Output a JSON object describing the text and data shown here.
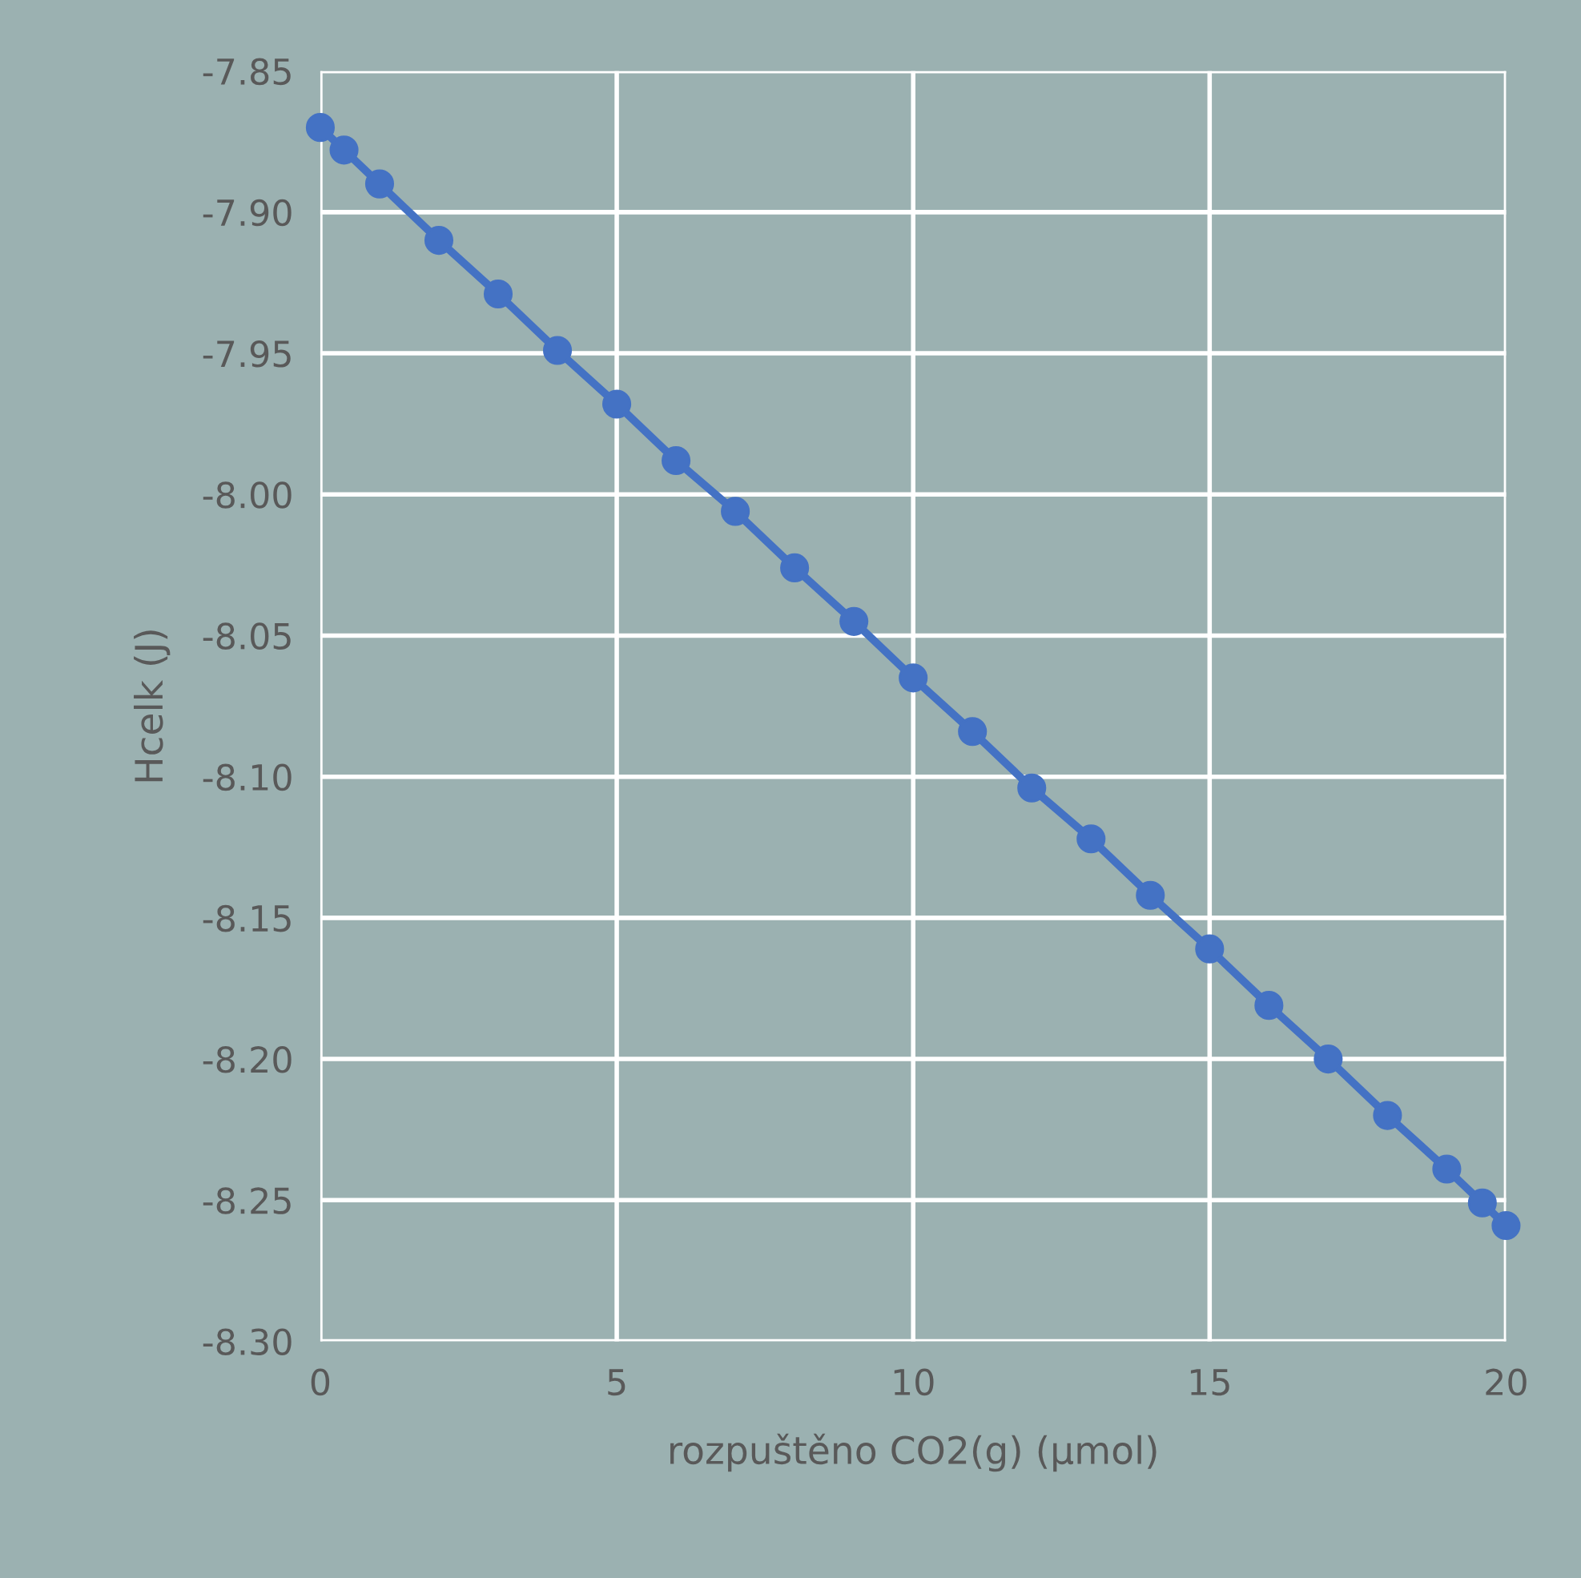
{
  "chart_data": {
    "type": "line",
    "xlabel": "rozpuštěno CO2(g) (µmol)",
    "ylabel": "Hcelk (J)",
    "x": [
      0,
      0.4,
      1,
      2,
      3,
      4,
      5,
      6,
      7,
      8,
      9,
      10,
      11,
      12,
      13,
      14,
      15,
      16,
      17,
      18,
      19,
      19.6,
      20
    ],
    "series": [
      {
        "color": "#4472c4",
        "values": [
          -7.87,
          -7.878,
          -7.89,
          -7.91,
          -7.929,
          -7.949,
          -7.968,
          -7.988,
          -8.006,
          -8.026,
          -8.045,
          -8.065,
          -8.084,
          -8.104,
          -8.122,
          -8.142,
          -8.161,
          -8.181,
          -8.2,
          -8.22,
          -8.239,
          -8.251,
          -8.259
        ]
      }
    ],
    "xlim": [
      0,
      20
    ],
    "xticks": [
      0,
      5,
      10,
      15,
      20
    ],
    "ylim": [
      -8.3,
      -7.85
    ],
    "yticks": [
      {
        "value": -8.3,
        "label": "-8.30"
      },
      {
        "value": -8.25,
        "label": "-8.25"
      },
      {
        "value": -8.2,
        "label": "-8.20"
      },
      {
        "value": -8.15,
        "label": "-8.15"
      },
      {
        "value": -8.1,
        "label": "-8.10"
      },
      {
        "value": -8.05,
        "label": "-8.05"
      },
      {
        "value": -8.0,
        "label": "-8.00"
      },
      {
        "value": -7.95,
        "label": "-7.95"
      },
      {
        "value": -7.9,
        "label": "-7.90"
      },
      {
        "value": -7.85,
        "label": "-7.85"
      }
    ],
    "grid": true,
    "marker": "circle",
    "line_style": "solid"
  }
}
